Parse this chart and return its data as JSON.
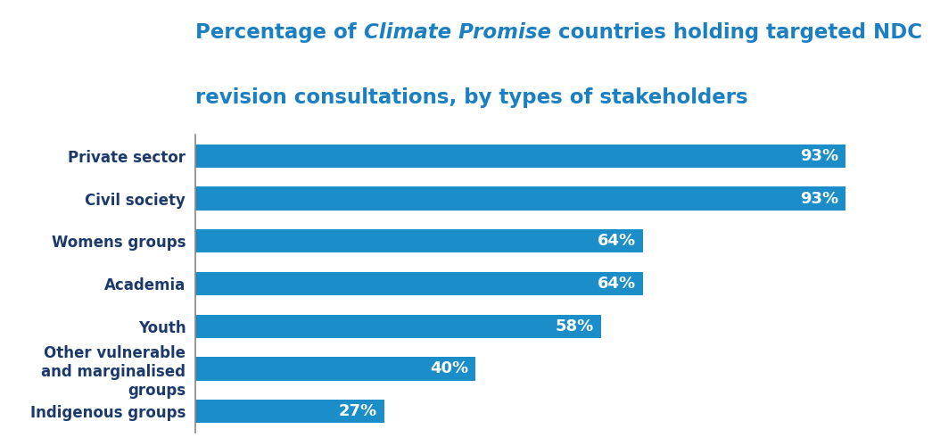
{
  "title_pre": "Percentage of ",
  "title_italic": "Climate Promise",
  "title_post": " countries holding targeted NDC",
  "title_line2": "revision consultations, by types of stakeholders",
  "title_color": "#1b7fc4",
  "categories": [
    "Private sector",
    "Civil society",
    "Womens groups",
    "Academia",
    "Youth",
    "Other vulnerable\nand marginalised\ngroups",
    "Indigenous groups"
  ],
  "values": [
    93,
    93,
    64,
    64,
    58,
    40,
    27
  ],
  "bar_color": "#1b8ec9",
  "label_color": "#ffffff",
  "tick_label_color": "#1b3a6b",
  "background_color": "#ffffff",
  "bar_height": 0.55,
  "label_fontsize": 13,
  "tick_fontsize": 12,
  "title_fontsize": 16.5
}
